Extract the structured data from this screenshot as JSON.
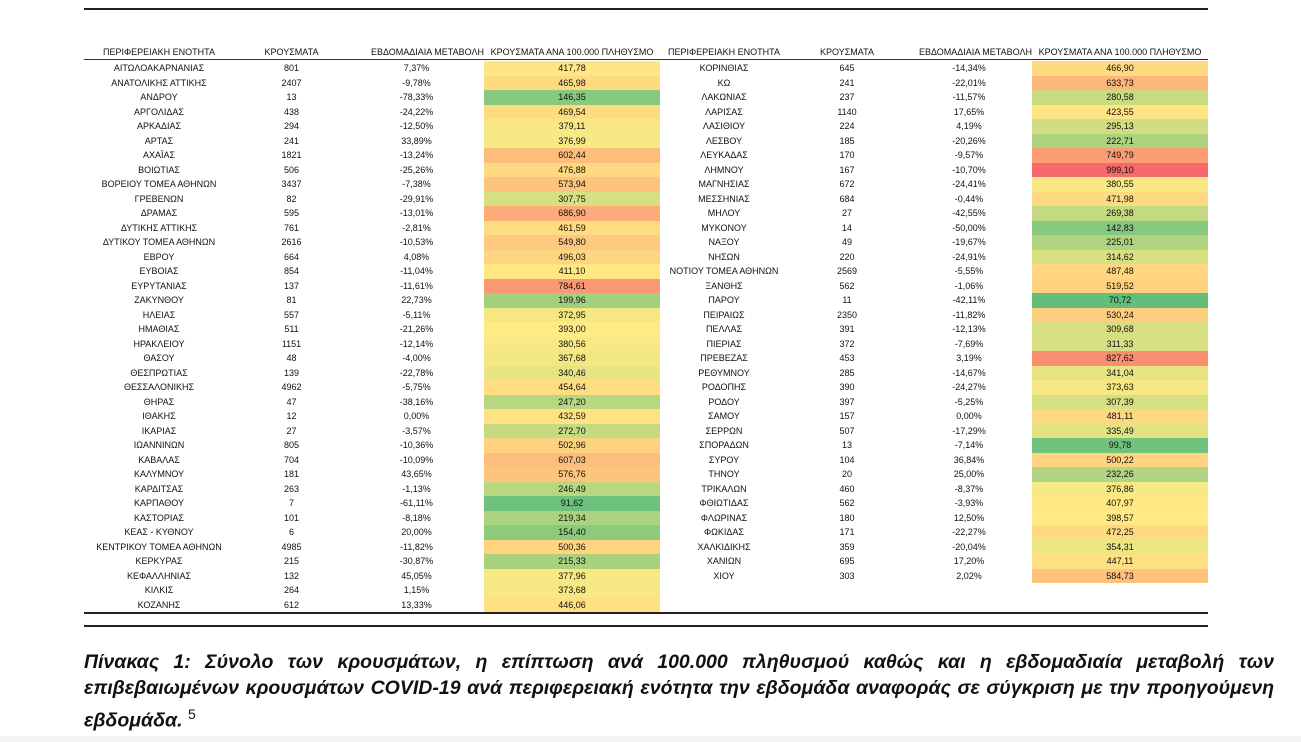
{
  "columns": [
    "ΠΕΡΙΦΕΡΕΙΑΚΗ ΕΝΟΤΗΤΑ",
    "ΚΡΟΥΣΜΑΤΑ",
    "ΕΒΔΟΜΑΔΙΑΙΑ ΜΕΤΑΒΟΛΗ",
    "ΚΡΟΥΣΜΑΤΑ ΑΝΑ 100.000 ΠΛΗΘΥΣΜΟ"
  ],
  "left_rows": [
    [
      "ΑΙΤΩΛΟΑΚΑΡΝΑΝΙΑΣ",
      "801",
      "7,37%",
      "417,78"
    ],
    [
      "ΑΝΑΤΟΛΙΚΗΣ ΑΤΤΙΚΗΣ",
      "2407",
      "-9,78%",
      "465,98"
    ],
    [
      "ΑΝΔΡΟΥ",
      "13",
      "-78,33%",
      "146,35"
    ],
    [
      "ΑΡΓΟΛΙΔΑΣ",
      "438",
      "-24,22%",
      "469,54"
    ],
    [
      "ΑΡΚΑΔΙΑΣ",
      "294",
      "-12,50%",
      "379,11"
    ],
    [
      "ΑΡΤΑΣ",
      "241",
      "33,89%",
      "376,99"
    ],
    [
      "ΑΧΑΪΑΣ",
      "1821",
      "-13,24%",
      "602,44"
    ],
    [
      "ΒΟΙΩΤΙΑΣ",
      "506",
      "-25,26%",
      "476,88"
    ],
    [
      "ΒΟΡΕΙΟΥ ΤΟΜΕΑ ΑΘΗΝΩΝ",
      "3437",
      "-7,38%",
      "573,94"
    ],
    [
      "ΓΡΕΒΕΝΩΝ",
      "82",
      "-29,91%",
      "307,75"
    ],
    [
      "ΔΡΑΜΑΣ",
      "595",
      "-13,01%",
      "686,90"
    ],
    [
      "ΔΥΤΙΚΗΣ ΑΤΤΙΚΗΣ",
      "761",
      "-2,81%",
      "461,59"
    ],
    [
      "ΔΥΤΙΚΟΥ ΤΟΜΕΑ ΑΘΗΝΩΝ",
      "2616",
      "-10,53%",
      "549,80"
    ],
    [
      "ΕΒΡΟΥ",
      "664",
      "4,08%",
      "496,03"
    ],
    [
      "ΕΥΒΟΙΑΣ",
      "854",
      "-11,04%",
      "411,10"
    ],
    [
      "ΕΥΡΥΤΑΝΙΑΣ",
      "137",
      "-11,61%",
      "784,61"
    ],
    [
      "ΖΑΚΥΝΘΟΥ",
      "81",
      "22,73%",
      "199,96"
    ],
    [
      "ΗΛΕΙΑΣ",
      "557",
      "-5,11%",
      "372,95"
    ],
    [
      "ΗΜΑΘΙΑΣ",
      "511",
      "-21,26%",
      "393,00"
    ],
    [
      "ΗΡΑΚΛΕΙΟΥ",
      "1151",
      "-12,14%",
      "380,56"
    ],
    [
      "ΘΑΣΟΥ",
      "48",
      "-4,00%",
      "367,68"
    ],
    [
      "ΘΕΣΠΡΩΤΙΑΣ",
      "139",
      "-22,78%",
      "340,46"
    ],
    [
      "ΘΕΣΣΑΛΟΝΙΚΗΣ",
      "4962",
      "-5,75%",
      "454,64"
    ],
    [
      "ΘΗΡΑΣ",
      "47",
      "-38,16%",
      "247,20"
    ],
    [
      "ΙΘΑΚΗΣ",
      "12",
      "0,00%",
      "432,59"
    ],
    [
      "ΙΚΑΡΙΑΣ",
      "27",
      "-3,57%",
      "272,70"
    ],
    [
      "ΙΩΑΝΝΙΝΩΝ",
      "805",
      "-10,36%",
      "502,96"
    ],
    [
      "ΚΑΒΑΛΑΣ",
      "704",
      "-10,09%",
      "607,03"
    ],
    [
      "ΚΑΛΥΜΝΟΥ",
      "181",
      "43,65%",
      "576,76"
    ],
    [
      "ΚΑΡΔΙΤΣΑΣ",
      "263",
      "-1,13%",
      "246,49"
    ],
    [
      "ΚΑΡΠΑΘΟΥ",
      "7",
      "-61,11%",
      "91,62"
    ],
    [
      "ΚΑΣΤΟΡΙΑΣ",
      "101",
      "-8,18%",
      "219,34"
    ],
    [
      "ΚΕΑΣ - ΚΥΘΝΟΥ",
      "6",
      "20,00%",
      "154,40"
    ],
    [
      "ΚΕΝΤΡΙΚΟΥ ΤΟΜΕΑ ΑΘΗΝΩΝ",
      "4985",
      "-11,82%",
      "500,36"
    ],
    [
      "ΚΕΡΚΥΡΑΣ",
      "215",
      "-30,87%",
      "215,33"
    ],
    [
      "ΚΕΦΑΛΛΗΝΙΑΣ",
      "132",
      "45,05%",
      "377,96"
    ],
    [
      "ΚΙΛΚΙΣ",
      "264",
      "1,15%",
      "373,68"
    ],
    [
      "ΚΟΖΑΝΗΣ",
      "612",
      "13,33%",
      "446,06"
    ]
  ],
  "right_rows": [
    [
      "ΚΟΡΙΝΘΙΑΣ",
      "645",
      "-14,34%",
      "466,90"
    ],
    [
      "ΚΩ",
      "241",
      "-22,01%",
      "633,73"
    ],
    [
      "ΛΑΚΩΝΙΑΣ",
      "237",
      "-11,57%",
      "280,58"
    ],
    [
      "ΛΑΡΙΣΑΣ",
      "1140",
      "17,65%",
      "423,55"
    ],
    [
      "ΛΑΣΙΘΙΟΥ",
      "224",
      "4,19%",
      "295,13"
    ],
    [
      "ΛΕΣΒΟΥ",
      "185",
      "-20,26%",
      "222,71"
    ],
    [
      "ΛΕΥΚΑΔΑΣ",
      "170",
      "-9,57%",
      "749,79"
    ],
    [
      "ΛΗΜΝΟΥ",
      "167",
      "-10,70%",
      "999,10"
    ],
    [
      "ΜΑΓΝΗΣΙΑΣ",
      "672",
      "-24,41%",
      "380,55"
    ],
    [
      "ΜΕΣΣΗΝΙΑΣ",
      "684",
      "-0,44%",
      "471,98"
    ],
    [
      "ΜΗΛΟΥ",
      "27",
      "-42,55%",
      "269,38"
    ],
    [
      "ΜΥΚΟΝΟΥ",
      "14",
      "-50,00%",
      "142,83"
    ],
    [
      "ΝΑΞΟΥ",
      "49",
      "-19,67%",
      "225,01"
    ],
    [
      "ΝΗΣΩΝ",
      "220",
      "-24,91%",
      "314,62"
    ],
    [
      "ΝΟΤΙΟΥ ΤΟΜΕΑ ΑΘΗΝΩΝ",
      "2569",
      "-5,55%",
      "487,48"
    ],
    [
      "ΞΑΝΘΗΣ",
      "562",
      "-1,06%",
      "519,52"
    ],
    [
      "ΠΑΡΟΥ",
      "11",
      "-42,11%",
      "70,72"
    ],
    [
      "ΠΕΙΡΑΙΩΣ",
      "2350",
      "-11,82%",
      "530,24"
    ],
    [
      "ΠΕΛΛΑΣ",
      "391",
      "-12,13%",
      "309,68"
    ],
    [
      "ΠΙΕΡΙΑΣ",
      "372",
      "-7,69%",
      "311,33"
    ],
    [
      "ΠΡΕΒΕΖΑΣ",
      "453",
      "3,19%",
      "827,62"
    ],
    [
      "ΡΕΘΥΜΝΟΥ",
      "285",
      "-14,67%",
      "341,04"
    ],
    [
      "ΡΟΔΟΠΗΣ",
      "390",
      "-24,27%",
      "373,63"
    ],
    [
      "ΡΟΔΟΥ",
      "397",
      "-5,25%",
      "307,39"
    ],
    [
      "ΣΑΜΟΥ",
      "157",
      "0,00%",
      "481,11"
    ],
    [
      "ΣΕΡΡΩΝ",
      "507",
      "-17,29%",
      "335,49"
    ],
    [
      "ΣΠΟΡΑΔΩΝ",
      "13",
      "-7,14%",
      "99,78"
    ],
    [
      "ΣΥΡΟΥ",
      "104",
      "36,84%",
      "500,22"
    ],
    [
      "ΤΗΝΟΥ",
      "20",
      "25,00%",
      "232,26"
    ],
    [
      "ΤΡΙΚΑΛΩΝ",
      "460",
      "-8,37%",
      "376,86"
    ],
    [
      "ΦΘΙΩΤΙΔΑΣ",
      "562",
      "-3,93%",
      "407,97"
    ],
    [
      "ΦΛΩΡΙΝΑΣ",
      "180",
      "12,50%",
      "398,57"
    ],
    [
      "ΦΩΚΙΔΑΣ",
      "171",
      "-22,27%",
      "472,25"
    ],
    [
      "ΧΑΛΚΙΔΙΚΗΣ",
      "359",
      "-20,04%",
      "354,31"
    ],
    [
      "ΧΑΝΙΩΝ",
      "695",
      "17,20%",
      "447,11"
    ],
    [
      "ΧΙΟΥ",
      "303",
      "2,02%",
      "584,73"
    ]
  ],
  "caption": {
    "text": "Πίνακας 1: Σύνολο των κρουσμάτων, η επίπτωση ανά 100.000 πληθυσμού καθώς και η εβδομαδιαία μεταβολή των επιβεβαιωμένων κρουσμάτων COVID-19 ανά περιφερειακή ενότητα την εβδομάδα αναφοράς σε σύγκριση με την προηγούμενη εβδομάδα.",
    "footnote": "5"
  },
  "colors": {
    "low": "#63be7b",
    "mid": "#ffeb84",
    "high": "#f8696b"
  }
}
